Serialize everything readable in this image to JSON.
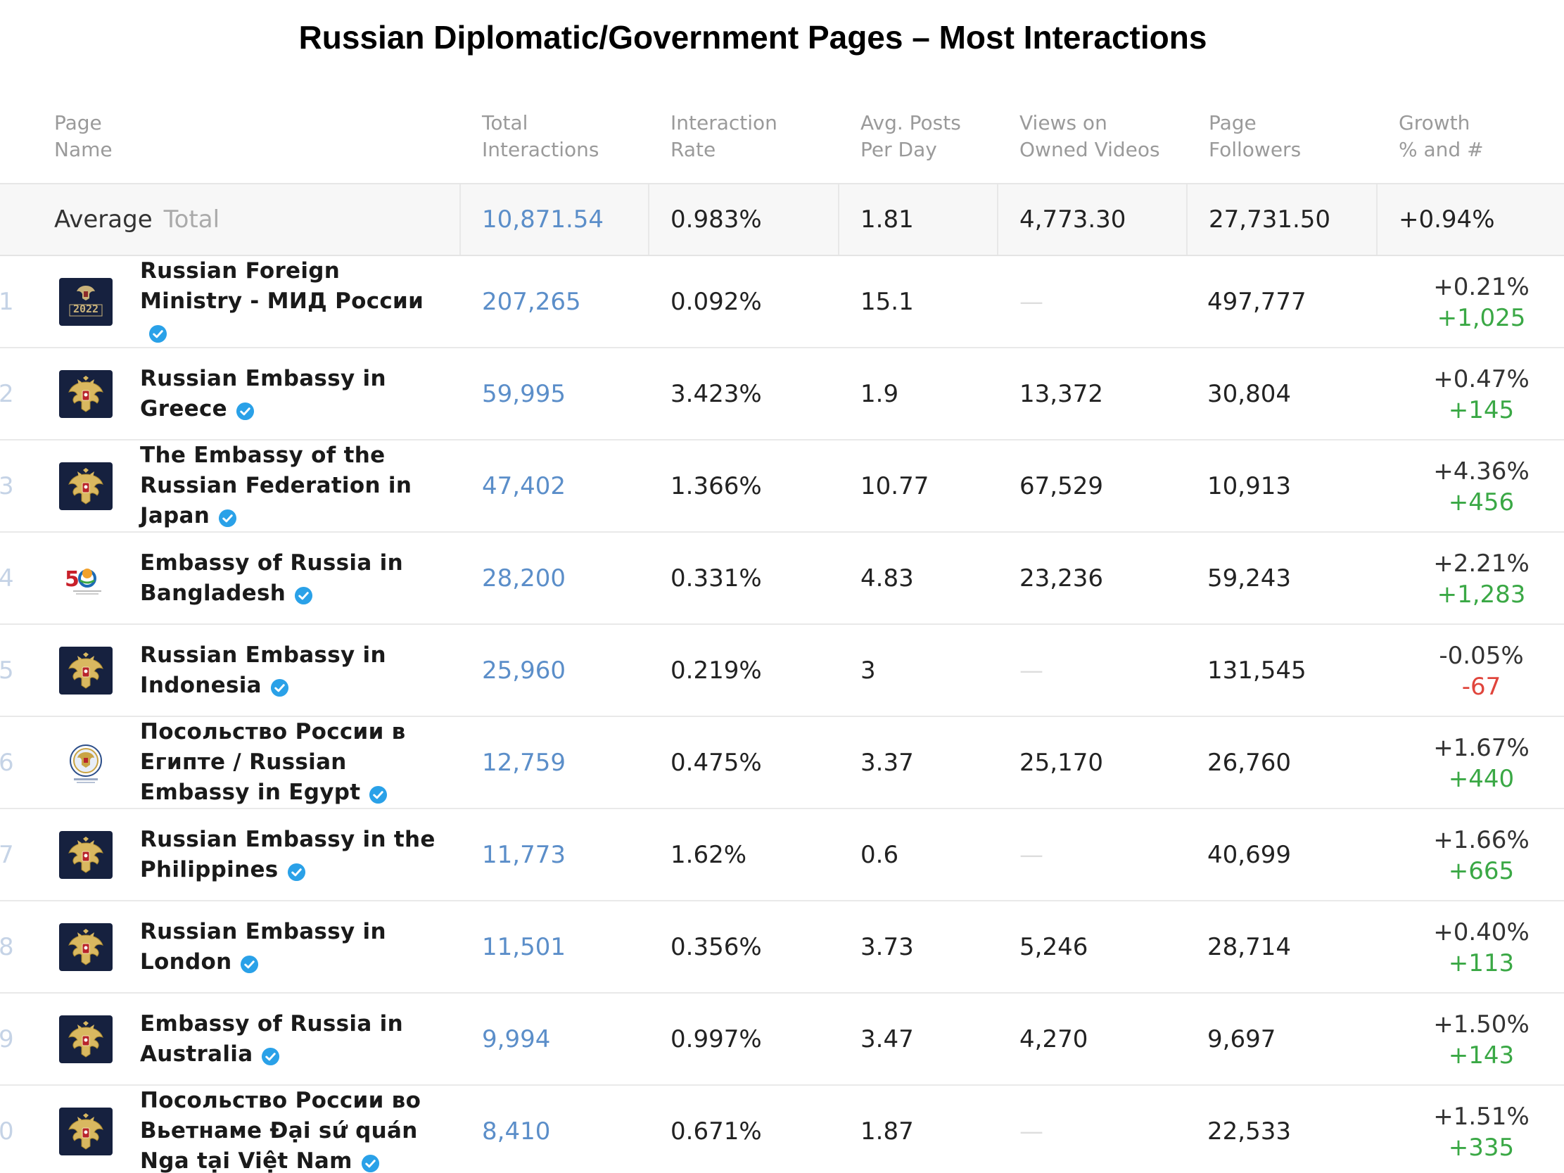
{
  "title": "Russian Diplomatic/Government Pages – Most Interactions",
  "colors": {
    "link": "#5b8ec9",
    "positive": "#3aa845",
    "negative": "#e0453c",
    "avatar_dark": "#16213f"
  },
  "columns": [
    [
      "Page",
      "Name"
    ],
    [
      "Total",
      "Interactions"
    ],
    [
      "Interaction",
      "Rate"
    ],
    [
      "Avg. Posts",
      "Per Day"
    ],
    [
      "Views on",
      "Owned Videos"
    ],
    [
      "Page",
      "Followers"
    ],
    [
      "Growth",
      "% and #"
    ]
  ],
  "average": {
    "label": "Average",
    "sublabel": "Total",
    "total_interactions": "10,871.54",
    "interaction_rate": "0.983%",
    "avg_posts": "1.81",
    "views": "4,773.30",
    "followers": "27,731.50",
    "growth": "+0.94%"
  },
  "rows": [
    {
      "rank": "1",
      "name": "Russian Foreign Ministry - МИД России",
      "avatar": "coat-of-arms-2022-icon",
      "total": "207,265",
      "rate": "0.092%",
      "posts": "15.1",
      "views": "—",
      "followers": "497,777",
      "growth_pct": "+0.21%",
      "growth_num": "+1,025",
      "growth_dir": "pos"
    },
    {
      "rank": "2",
      "name": "Russian Embassy in Greece",
      "avatar": "eagle-emblem-icon",
      "total": "59,995",
      "rate": "3.423%",
      "posts": "1.9",
      "views": "13,372",
      "followers": "30,804",
      "growth_pct": "+0.47%",
      "growth_num": "+145",
      "growth_dir": "pos"
    },
    {
      "rank": "3",
      "name": "The Embassy of the Russian Federation in Japan",
      "avatar": "eagle-emblem-icon",
      "total": "47,402",
      "rate": "1.366%",
      "posts": "10.77",
      "views": "67,529",
      "followers": "10,913",
      "growth_pct": "+4.36%",
      "growth_num": "+456",
      "growth_dir": "pos"
    },
    {
      "rank": "4",
      "name": "Embassy of Russia in Bangladesh",
      "avatar": "anniversary-50-logo-icon",
      "total": "28,200",
      "rate": "0.331%",
      "posts": "4.83",
      "views": "23,236",
      "followers": "59,243",
      "growth_pct": "+2.21%",
      "growth_num": "+1,283",
      "growth_dir": "pos"
    },
    {
      "rank": "5",
      "name": "Russian Embassy in Indonesia",
      "avatar": "eagle-emblem-icon",
      "total": "25,960",
      "rate": "0.219%",
      "posts": "3",
      "views": "—",
      "followers": "131,545",
      "growth_pct": "-0.05%",
      "growth_num": "-67",
      "growth_dir": "neg"
    },
    {
      "rank": "6",
      "name": "Посольство России в Египте / Russian Embassy in Egypt",
      "avatar": "round-seal-icon",
      "total": "12,759",
      "rate": "0.475%",
      "posts": "3.37",
      "views": "25,170",
      "followers": "26,760",
      "growth_pct": "+1.67%",
      "growth_num": "+440",
      "growth_dir": "pos"
    },
    {
      "rank": "7",
      "name": "Russian Embassy in the Philippines",
      "avatar": "eagle-emblem-icon",
      "total": "11,773",
      "rate": "1.62%",
      "posts": "0.6",
      "views": "—",
      "followers": "40,699",
      "growth_pct": "+1.66%",
      "growth_num": "+665",
      "growth_dir": "pos"
    },
    {
      "rank": "8",
      "name": "Russian Embassy in London",
      "avatar": "eagle-emblem-icon",
      "total": "11,501",
      "rate": "0.356%",
      "posts": "3.73",
      "views": "5,246",
      "followers": "28,714",
      "growth_pct": "+0.40%",
      "growth_num": "+113",
      "growth_dir": "pos"
    },
    {
      "rank": "9",
      "name": "Embassy of Russia in Australia",
      "avatar": "eagle-emblem-icon",
      "total": "9,994",
      "rate": "0.997%",
      "posts": "3.47",
      "views": "4,270",
      "followers": "9,697",
      "growth_pct": "+1.50%",
      "growth_num": "+143",
      "growth_dir": "pos"
    },
    {
      "rank": "0",
      "name": "Посольство России во Вьетнаме Đại sứ quán Nga tại Việt Nam",
      "avatar": "eagle-emblem-icon",
      "total": "8,410",
      "rate": "0.671%",
      "posts": "1.87",
      "views": "—",
      "followers": "22,533",
      "growth_pct": "+1.51%",
      "growth_num": "+335",
      "growth_dir": "pos"
    }
  ]
}
